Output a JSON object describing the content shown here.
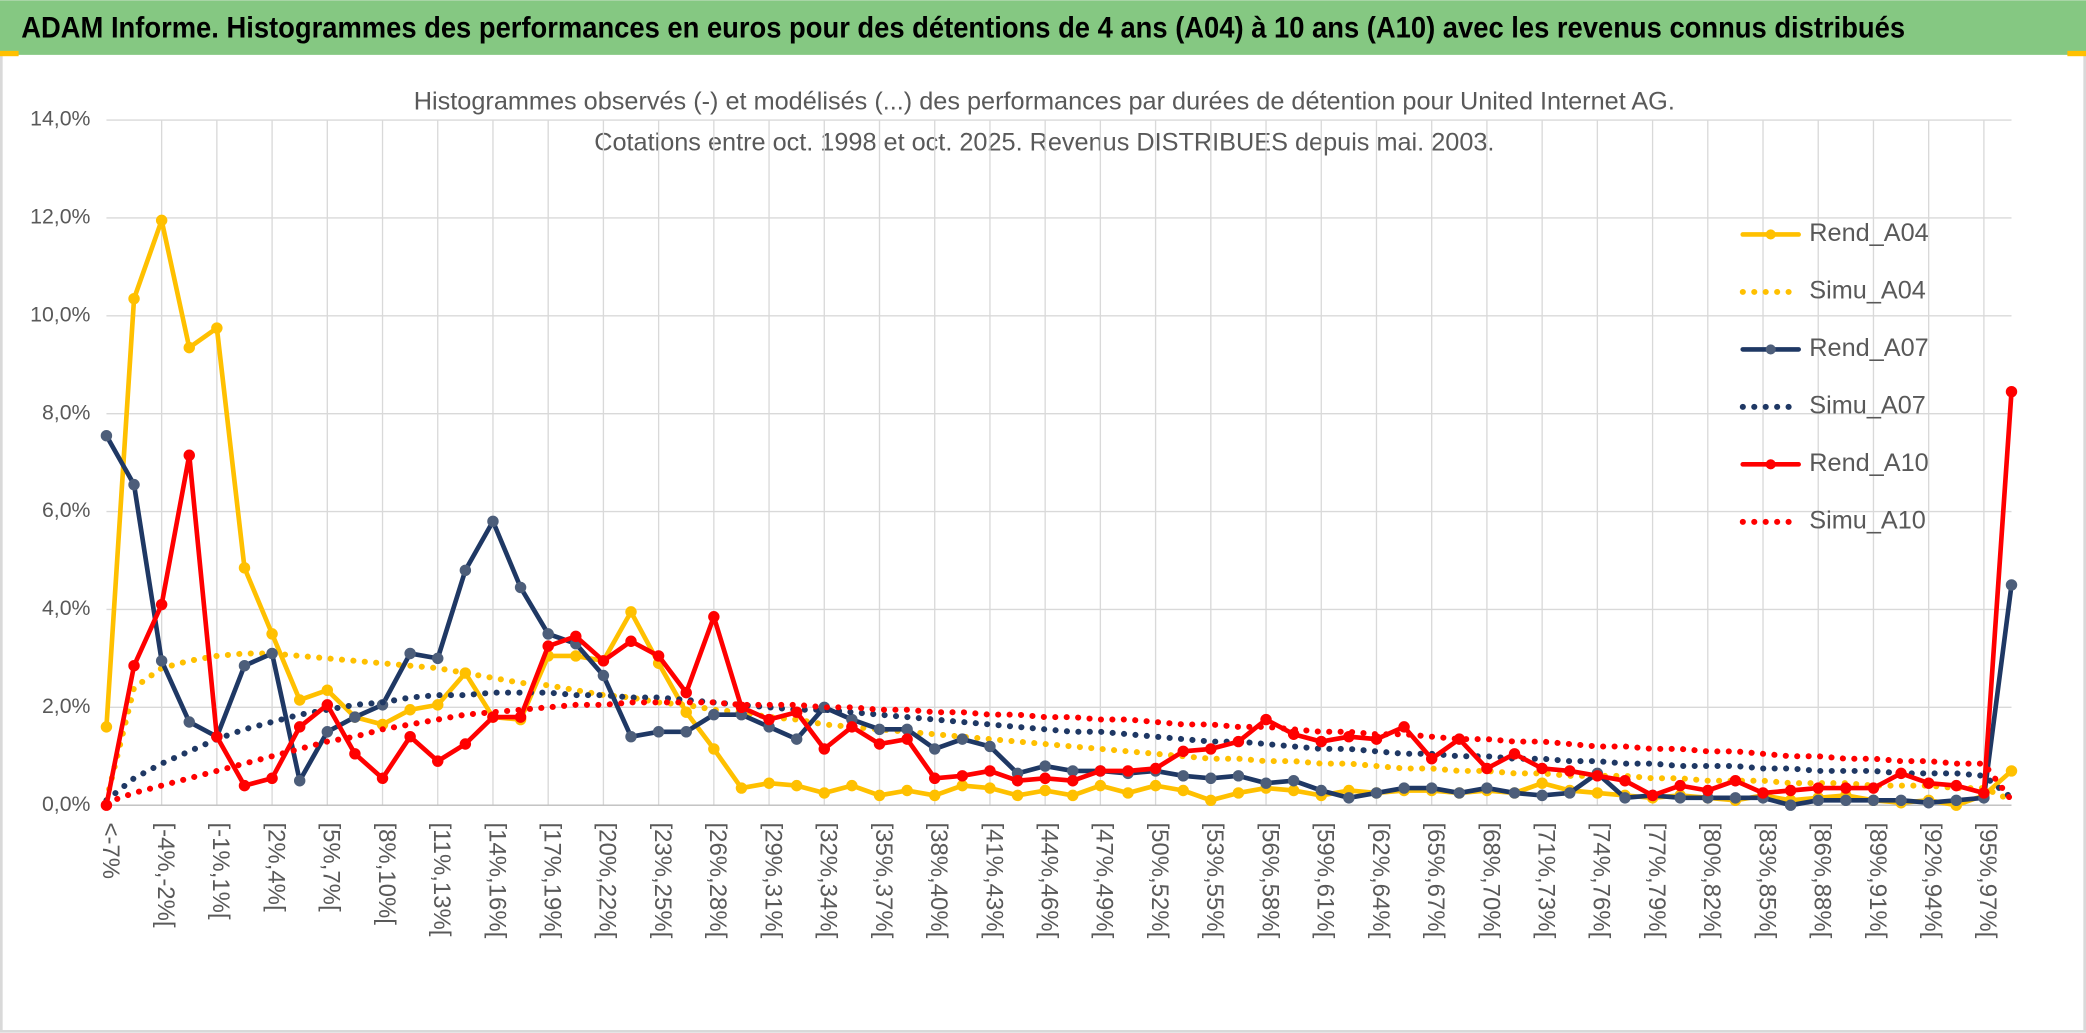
{
  "header": "ADAM Informe. Histogrammes des performances en euros pour des détentions de 4 ans (A04) à 10 ans (A10) avec les revenus connus distribués",
  "chart_data": {
    "type": "line",
    "title": [
      "Histogrammes observés (-) et modélisés (...) des performances par durées de détention pour United Internet AG.",
      "Cotations entre oct. 1998 et oct. 2025. Revenus DISTRIBUES depuis mai. 2003."
    ],
    "categories": [
      "<-7%",
      null,
      "[-4%,-2%[",
      null,
      "[-1%,1%[",
      null,
      "[2%,4%[",
      null,
      "[5%,7%[",
      null,
      "[8%,10%[",
      null,
      "[11%,13%[",
      null,
      "[14%,16%[",
      null,
      "[17%,19%[",
      null,
      "[20%,22%[",
      null,
      "[23%,25%[",
      null,
      "[26%,28%[",
      null,
      "[29%,31%[",
      null,
      "[32%,34%[",
      null,
      "[35%,37%[",
      null,
      "[38%,40%[",
      null,
      "[41%,43%[",
      null,
      "[44%,46%[",
      null,
      "[47%,49%[",
      null,
      "[50%,52%[",
      null,
      "[53%,55%[",
      null,
      "[56%,58%[",
      null,
      "[59%,61%[",
      null,
      "[62%,64%[",
      null,
      "[65%,67%[",
      null,
      "[68%,70%[",
      null,
      "[71%,73%[",
      null,
      "[74%,76%[",
      null,
      "[77%,79%[",
      null,
      "[80%,82%[",
      null,
      "[83%,85%[",
      null,
      "[86%,88%[",
      null,
      "[89%,91%[",
      null,
      "[92%,94%[",
      null,
      "[95%,97%[",
      null
    ],
    "series": [
      {
        "name": "Rend_A04",
        "color": "#ffc000",
        "style": "solid",
        "markers": true,
        "values": [
          1.6,
          10.35,
          11.95,
          9.35,
          9.75,
          4.85,
          3.5,
          2.15,
          2.35,
          1.8,
          1.65,
          1.95,
          2.05,
          2.7,
          1.8,
          1.75,
          3.05,
          3.05,
          2.95,
          3.95,
          2.9,
          1.9,
          1.15,
          0.35,
          0.45,
          0.4,
          0.25,
          0.4,
          0.2,
          0.3,
          0.2,
          0.4,
          0.35,
          0.2,
          0.3,
          0.2,
          0.4,
          0.25,
          0.4,
          0.3,
          0.1,
          0.25,
          0.35,
          0.3,
          0.2,
          0.3,
          0.25,
          0.3,
          0.3,
          0.25,
          0.3,
          0.25,
          0.45,
          0.3,
          0.25,
          0.2,
          0.15,
          0.2,
          0.15,
          0.1,
          0.2,
          0.1,
          0.15,
          0.2,
          0.1,
          0.05,
          0.1,
          0.0,
          0.2,
          0.7
        ]
      },
      {
        "name": "Simu_A04",
        "color": "#ffc000",
        "style": "dotted",
        "markers": false,
        "values": [
          0.1,
          2.4,
          2.8,
          2.95,
          3.05,
          3.1,
          3.1,
          3.05,
          3.0,
          2.95,
          2.9,
          2.85,
          2.8,
          2.7,
          2.6,
          2.5,
          2.45,
          2.35,
          2.25,
          2.2,
          2.1,
          2.05,
          1.95,
          1.9,
          1.8,
          1.75,
          1.65,
          1.6,
          1.55,
          1.5,
          1.45,
          1.4,
          1.35,
          1.3,
          1.25,
          1.2,
          1.15,
          1.1,
          1.05,
          1.0,
          0.95,
          0.95,
          0.9,
          0.9,
          0.85,
          0.85,
          0.8,
          0.75,
          0.75,
          0.7,
          0.7,
          0.65,
          0.65,
          0.6,
          0.6,
          0.6,
          0.55,
          0.55,
          0.5,
          0.5,
          0.5,
          0.45,
          0.45,
          0.45,
          0.4,
          0.4,
          0.4,
          0.35,
          0.35,
          0.1
        ]
      },
      {
        "name": "Rend_A07",
        "color": "#1f3864",
        "marker_color": "#4d5e7a",
        "style": "solid",
        "markers": true,
        "values": [
          7.55,
          6.55,
          2.95,
          1.7,
          1.4,
          2.85,
          3.1,
          0.5,
          1.5,
          1.8,
          2.05,
          3.1,
          3.0,
          4.8,
          5.8,
          4.45,
          3.5,
          3.3,
          2.65,
          1.4,
          1.5,
          1.5,
          1.85,
          1.85,
          1.6,
          1.35,
          2.0,
          1.75,
          1.55,
          1.55,
          1.15,
          1.35,
          1.2,
          0.65,
          0.8,
          0.7,
          0.7,
          0.65,
          0.7,
          0.6,
          0.55,
          0.6,
          0.45,
          0.5,
          0.3,
          0.15,
          0.25,
          0.35,
          0.35,
          0.25,
          0.35,
          0.25,
          0.2,
          0.25,
          0.65,
          0.15,
          0.2,
          0.15,
          0.15,
          0.15,
          0.15,
          0.0,
          0.1,
          0.1,
          0.1,
          0.1,
          0.05,
          0.1,
          0.15,
          4.5
        ]
      },
      {
        "name": "Simu_A07",
        "color": "#1f3864",
        "style": "dotted",
        "markers": false,
        "values": [
          0.1,
          0.55,
          0.85,
          1.1,
          1.35,
          1.55,
          1.7,
          1.85,
          1.95,
          2.05,
          2.1,
          2.2,
          2.25,
          2.25,
          2.3,
          2.3,
          2.3,
          2.25,
          2.25,
          2.2,
          2.2,
          2.15,
          2.1,
          2.05,
          2.0,
          1.95,
          1.95,
          1.9,
          1.85,
          1.8,
          1.75,
          1.7,
          1.65,
          1.6,
          1.55,
          1.5,
          1.5,
          1.45,
          1.4,
          1.35,
          1.3,
          1.3,
          1.25,
          1.2,
          1.15,
          1.15,
          1.1,
          1.05,
          1.05,
          1.0,
          1.0,
          0.95,
          0.95,
          0.9,
          0.9,
          0.85,
          0.85,
          0.8,
          0.8,
          0.8,
          0.75,
          0.75,
          0.7,
          0.7,
          0.7,
          0.65,
          0.65,
          0.65,
          0.6,
          0.15
        ]
      },
      {
        "name": "Rend_A10",
        "color": "#ff0000",
        "style": "solid",
        "markers": true,
        "values": [
          0.0,
          2.85,
          4.1,
          7.15,
          1.4,
          0.4,
          0.55,
          1.6,
          2.05,
          1.05,
          0.55,
          1.4,
          0.9,
          1.25,
          1.8,
          1.8,
          3.25,
          3.45,
          2.95,
          3.35,
          3.05,
          2.3,
          3.85,
          2.0,
          1.75,
          1.9,
          1.15,
          1.6,
          1.25,
          1.35,
          0.55,
          0.6,
          0.7,
          0.5,
          0.55,
          0.5,
          0.7,
          0.7,
          0.75,
          1.1,
          1.15,
          1.3,
          1.75,
          1.45,
          1.3,
          1.4,
          1.35,
          1.6,
          0.95,
          1.35,
          0.75,
          1.05,
          0.75,
          0.7,
          0.6,
          0.5,
          0.2,
          0.4,
          0.3,
          0.5,
          0.25,
          0.3,
          0.35,
          0.35,
          0.35,
          0.65,
          0.45,
          0.4,
          0.25,
          8.45
        ]
      },
      {
        "name": "Simu_A10",
        "color": "#ff0000",
        "style": "dotted",
        "markers": false,
        "values": [
          0.05,
          0.25,
          0.4,
          0.55,
          0.7,
          0.85,
          1.0,
          1.15,
          1.3,
          1.4,
          1.55,
          1.65,
          1.75,
          1.85,
          1.9,
          1.95,
          2.0,
          2.05,
          2.05,
          2.1,
          2.1,
          2.1,
          2.1,
          2.05,
          2.05,
          2.05,
          2.0,
          2.0,
          1.95,
          1.95,
          1.9,
          1.9,
          1.85,
          1.85,
          1.8,
          1.8,
          1.75,
          1.75,
          1.7,
          1.65,
          1.65,
          1.6,
          1.6,
          1.55,
          1.5,
          1.5,
          1.45,
          1.45,
          1.4,
          1.35,
          1.35,
          1.3,
          1.3,
          1.25,
          1.2,
          1.2,
          1.15,
          1.15,
          1.1,
          1.1,
          1.05,
          1.0,
          1.0,
          0.95,
          0.95,
          0.9,
          0.9,
          0.85,
          0.85,
          0.1
        ]
      }
    ],
    "ylim": [
      0,
      14
    ],
    "yticks": [
      {
        "value": 0,
        "label": "0,0%"
      },
      {
        "value": 2,
        "label": "2,0%"
      },
      {
        "value": 4,
        "label": "4,0%"
      },
      {
        "value": 6,
        "label": "6,0%"
      },
      {
        "value": 8,
        "label": "8,0%"
      },
      {
        "value": 10,
        "label": "10,0%"
      },
      {
        "value": 12,
        "label": "12,0%"
      },
      {
        "value": 14,
        "label": "14,0%"
      }
    ],
    "grid": true,
    "legend": "right"
  }
}
